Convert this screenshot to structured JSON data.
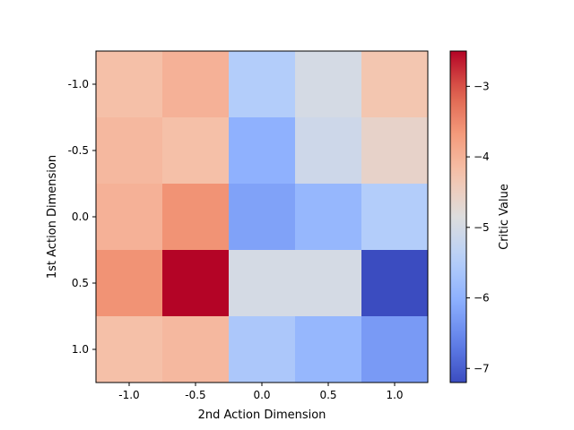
{
  "chart_data": {
    "type": "heatmap",
    "title": "",
    "xlabel": "2nd Action Dimension",
    "ylabel": "1st Action Dimension",
    "x_ticks": [
      "-1.0",
      "-0.5",
      "0.0",
      "0.5",
      "1.0"
    ],
    "y_ticks": [
      "-1.0",
      "-0.5",
      "0.0",
      "0.5",
      "1.0"
    ],
    "x": [
      -1.0,
      -0.5,
      0.0,
      0.5,
      1.0
    ],
    "y": [
      -1.0,
      -0.5,
      0.0,
      0.5,
      1.0
    ],
    "values": [
      [
        -4.2,
        -4.0,
        -5.5,
        -5.0,
        -4.3
      ],
      [
        -4.1,
        -4.2,
        -6.0,
        -5.1,
        -4.6
      ],
      [
        -4.0,
        -3.6,
        -6.2,
        -5.9,
        -5.5
      ],
      [
        -3.6,
        -2.5,
        -5.0,
        -5.0,
        -7.2
      ],
      [
        -4.2,
        -4.1,
        -5.6,
        -5.9,
        -6.3
      ]
    ],
    "colormap": "coolwarm",
    "vmin": -7.2,
    "vmax": -2.5,
    "colorbar": {
      "label": "Critic Value",
      "ticks": [
        -7,
        -6,
        -5,
        -4,
        -3
      ],
      "tick_labels": [
        "−7",
        "−6",
        "−5",
        "−4",
        "−3"
      ]
    },
    "grid": false,
    "legend": "none"
  }
}
